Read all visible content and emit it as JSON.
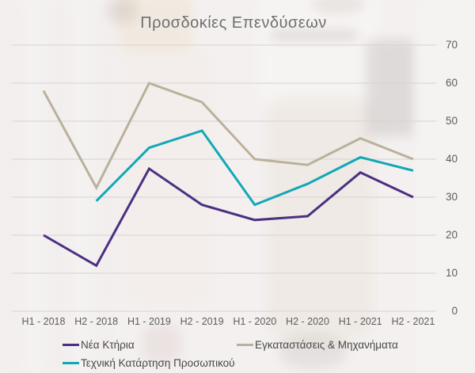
{
  "title": "Προσδοκίες Επενδύσεων",
  "colors": {
    "background": "#f3f0f0",
    "gridline": "#d8d2d2",
    "title_text": "#6f6f6f",
    "axis_text": "#5d5d5d",
    "legend_text": "#474747",
    "series_purple": "#4c2f82",
    "series_beige": "#bab19b",
    "series_teal": "#11a8b6"
  },
  "chart_data": {
    "type": "line",
    "title": "Προσδοκίες Επενδύσεων",
    "categories": [
      "H1 - 2018",
      "H2 - 2018",
      "H1 - 2019",
      "H2 - 2019",
      "H1 - 2020",
      "H2 - 2020",
      "H1 - 2021",
      "H2 - 2021"
    ],
    "series": [
      {
        "name": "Νέα Κτήρια",
        "color": "#4c2f82",
        "values": [
          20,
          12,
          37.5,
          28,
          24,
          25,
          36.5,
          30
        ]
      },
      {
        "name": "Εγκαταστάσεις & Μηχανήματα",
        "color": "#bab19b",
        "values": [
          58,
          32.5,
          60,
          55,
          40,
          38.5,
          45.5,
          40
        ]
      },
      {
        "name": "Τεχνική Κατάρτηση Προσωπικού",
        "color": "#11a8b6",
        "values": [
          null,
          29,
          43,
          47.5,
          28,
          33.5,
          40.5,
          37
        ]
      }
    ],
    "ylim": [
      0,
      70
    ],
    "yticks": [
      0,
      10,
      20,
      30,
      40,
      50,
      60,
      70
    ],
    "xlabel": "",
    "ylabel": "",
    "grid": true,
    "y_axis_side": "right",
    "legend_position": "bottom"
  }
}
